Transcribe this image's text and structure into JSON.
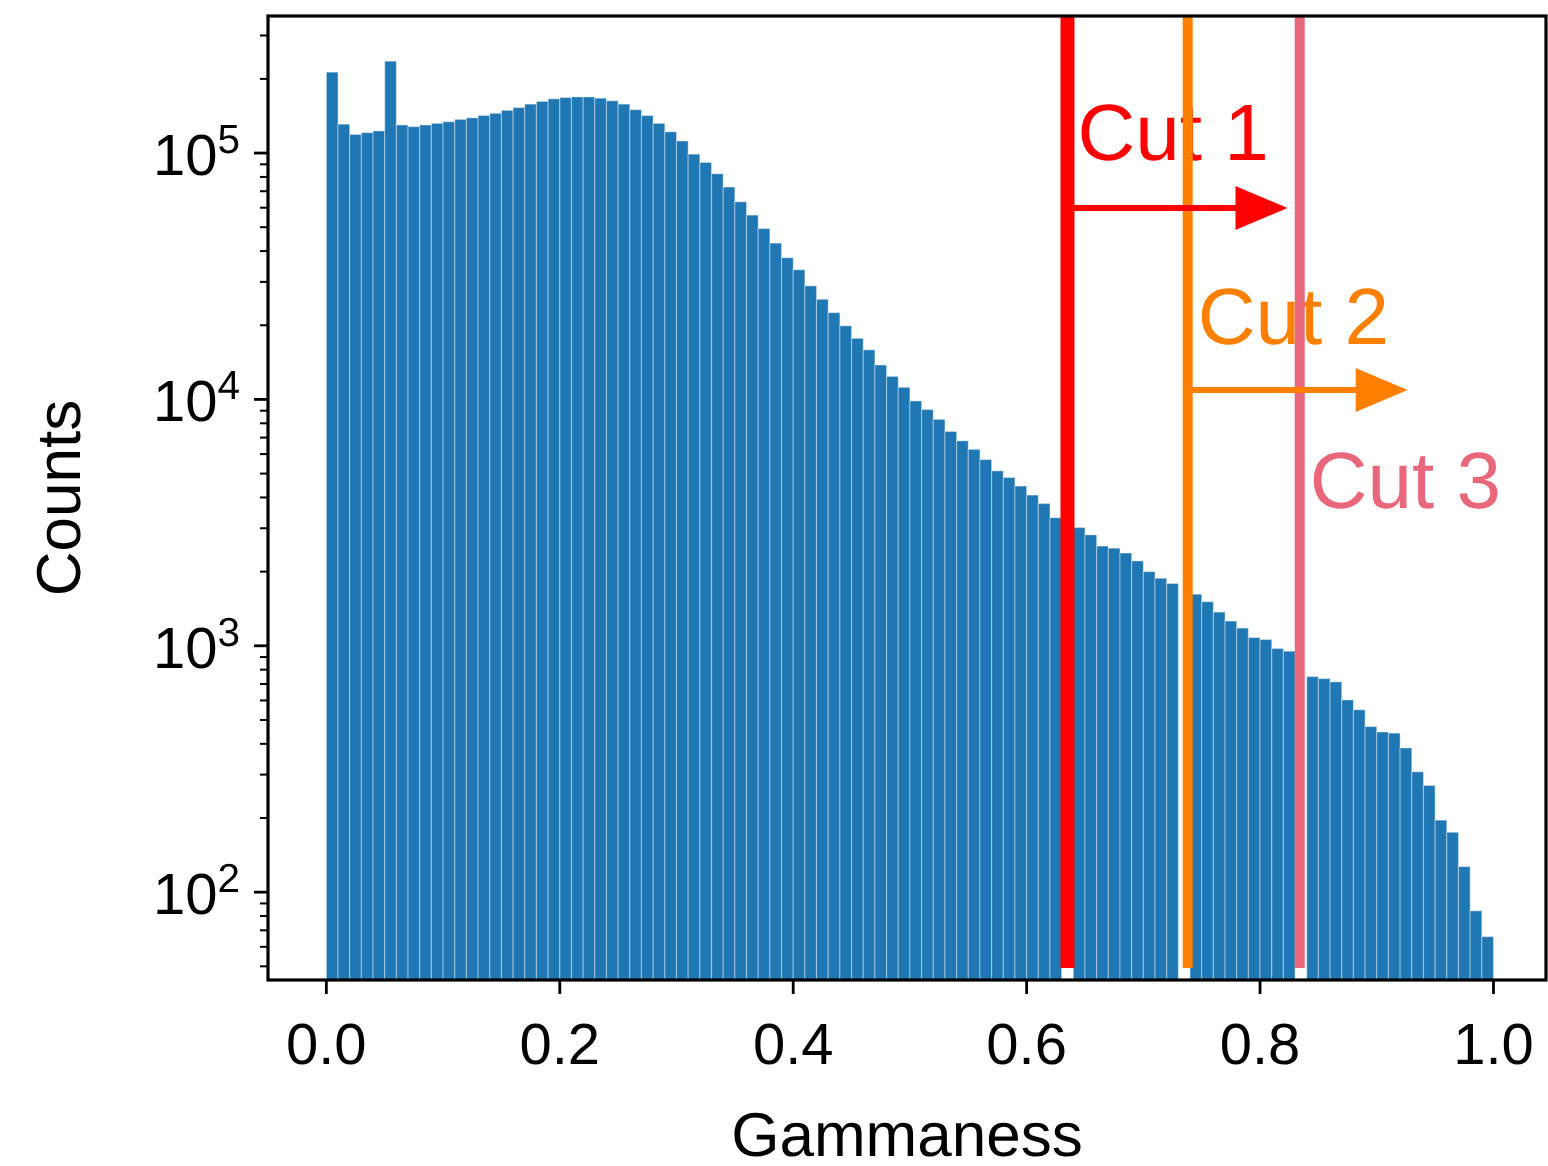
{
  "chart_data": {
    "type": "histogram",
    "xlabel": "Gammaness",
    "ylabel": "Counts",
    "color": "#1f77b4",
    "bins": [
      0,
      0.01,
      0.02,
      0.03,
      0.04,
      0.05,
      0.06,
      0.07,
      0.08,
      0.09,
      0.1,
      0.11,
      0.12,
      0.13,
      0.14,
      0.15,
      0.16,
      0.17,
      0.18,
      0.19,
      0.2,
      0.21,
      0.22,
      0.23,
      0.24,
      0.25,
      0.26,
      0.27,
      0.28,
      0.29,
      0.3,
      0.31,
      0.32,
      0.33,
      0.34,
      0.35,
      0.36,
      0.37,
      0.38,
      0.39,
      0.4,
      0.41,
      0.42,
      0.43,
      0.44,
      0.45,
      0.46,
      0.47,
      0.48,
      0.49,
      0.5,
      0.51,
      0.52,
      0.53,
      0.54,
      0.55,
      0.56,
      0.57,
      0.58,
      0.59,
      0.6,
      0.61,
      0.62,
      0.63,
      0.64,
      0.65,
      0.66,
      0.67,
      0.68,
      0.69,
      0.7,
      0.71,
      0.72,
      0.73,
      0.74,
      0.75,
      0.76,
      0.77,
      0.78,
      0.79,
      0.8,
      0.81,
      0.82,
      0.83,
      0.84,
      0.85,
      0.86,
      0.87,
      0.88,
      0.89,
      0.9,
      0.91,
      0.92,
      0.93,
      0.94,
      0.95,
      0.96,
      0.97,
      0.98,
      0.99,
      1
    ],
    "values": [
      213000,
      131000,
      119000,
      121000,
      123000,
      236000,
      130000,
      128000,
      130000,
      132000,
      134000,
      137000,
      139000,
      142000,
      145000,
      149000,
      153000,
      158000,
      162000,
      166000,
      168000,
      169000,
      169000,
      167000,
      163000,
      158000,
      150000,
      142000,
      132000,
      122000,
      112000,
      99000,
      91600,
      82400,
      72800,
      63400,
      56000,
      49400,
      43100,
      37600,
      33600,
      28900,
      25500,
      22500,
      19900,
      17700,
      15900,
      13800,
      12400,
      11200,
      9860,
      9100,
      8300,
      7410,
      6790,
      6270,
      5700,
      5130,
      4820,
      4450,
      4090,
      3780,
      3310,
      null,
      3020,
      2820,
      2540,
      2490,
      2380,
      2210,
      2000,
      1880,
      1790,
      null,
      1620,
      1510,
      1370,
      1260,
      1180,
      1080,
      1060,
      975,
      951,
      null,
      750,
      736,
      714,
      603,
      550,
      470,
      447,
      442,
      385,
      308,
      271,
      196,
      175,
      127,
      84,
      66
    ],
    "log": "y",
    "xlim": [
      -0.05,
      1.045
    ],
    "xticks": [
      {
        "value": 0,
        "label": "0.0"
      },
      {
        "value": 0.2,
        "label": "0.2"
      },
      {
        "value": 0.4,
        "label": "0.4"
      },
      {
        "value": 0.6,
        "label": "0.6"
      },
      {
        "value": 0.8,
        "label": "0.8"
      },
      {
        "value": 1,
        "label": "1.0"
      }
    ],
    "ylim": [
      44,
      360000
    ],
    "yticks": [
      {
        "value": 50,
        "label": null
      },
      {
        "value": 60,
        "label": null
      },
      {
        "value": 70,
        "label": null
      },
      {
        "value": 80,
        "label": null
      },
      {
        "value": 90,
        "label": null
      },
      {
        "value": 100,
        "label": "10$^{2}$"
      },
      {
        "value": 200,
        "label": null
      },
      {
        "value": 300,
        "label": null
      },
      {
        "value": 400,
        "label": null
      },
      {
        "value": 500,
        "label": null
      },
      {
        "value": 600,
        "label": null
      },
      {
        "value": 700,
        "label": null
      },
      {
        "value": 800,
        "label": null
      },
      {
        "value": 900,
        "label": null
      },
      {
        "value": 1000,
        "label": "10$^{3}$"
      },
      {
        "value": 2000,
        "label": null
      },
      {
        "value": 3000,
        "label": null
      },
      {
        "value": 4000,
        "label": null
      },
      {
        "value": 5000,
        "label": null
      },
      {
        "value": 6000,
        "label": null
      },
      {
        "value": 7000,
        "label": null
      },
      {
        "value": 8000,
        "label": null
      },
      {
        "value": 9000,
        "label": null
      },
      {
        "value": 10000,
        "label": "10$^{4}$"
      },
      {
        "value": 20000,
        "label": null
      },
      {
        "value": 30000,
        "label": null
      },
      {
        "value": 40000,
        "label": null
      },
      {
        "value": 50000,
        "label": null
      },
      {
        "value": 60000,
        "label": null
      },
      {
        "value": 70000,
        "label": null
      },
      {
        "value": 80000,
        "label": null
      },
      {
        "value": 90000,
        "label": null
      },
      {
        "value": 100000,
        "label": "10$^{5}$"
      },
      {
        "value": 200000,
        "label": null
      },
      {
        "value": 300000,
        "label": null
      }
    ],
    "grid": false,
    "ref_lines": [
      {
        "axis": "x",
        "value": 0.635,
        "label": "Cut 1",
        "color": "#ff0000"
      },
      {
        "axis": "x",
        "value": 0.738,
        "label": "Cut 2",
        "color": "#ff8000"
      },
      {
        "axis": "x",
        "value": 0.834,
        "label": "Cut 3",
        "color": "#e8677a"
      }
    ]
  }
}
